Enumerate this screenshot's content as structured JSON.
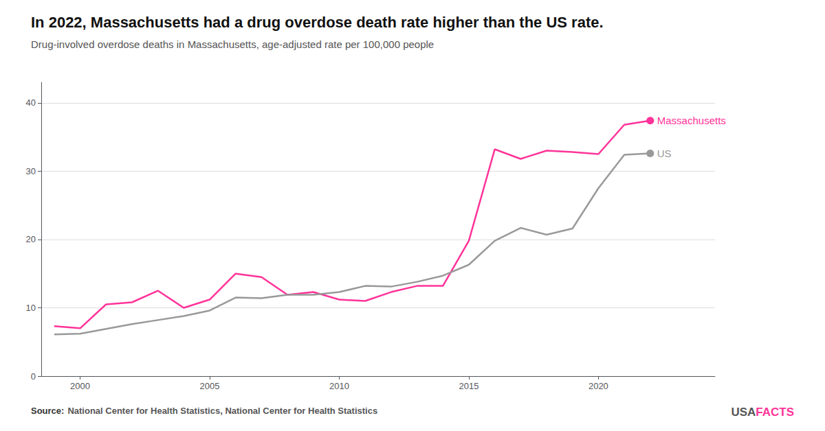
{
  "chart_data": {
    "type": "line",
    "title": "In 2022, Massachusetts had a drug overdose death rate higher than the US rate.",
    "subtitle": "Drug-involved overdose deaths in Massachusetts, age-adjusted rate per 100,000 people",
    "source_label": "Source:",
    "source": "National Center for Health Statistics, National Center for Health Statistics",
    "branding": [
      "USA",
      "FACTS"
    ],
    "x": [
      1999,
      2000,
      2001,
      2002,
      2003,
      2004,
      2005,
      2006,
      2007,
      2008,
      2009,
      2010,
      2011,
      2012,
      2013,
      2014,
      2015,
      2016,
      2017,
      2018,
      2019,
      2020,
      2021,
      2022
    ],
    "xlim": [
      1998.5,
      2024.5
    ],
    "xticks": [
      2000,
      2005,
      2010,
      2015,
      2020
    ],
    "ylim": [
      0,
      43
    ],
    "yticks": [
      0,
      10,
      20,
      30,
      40
    ],
    "grid": true,
    "series": [
      {
        "name": "Massachusetts",
        "color": "#FF3399",
        "values": [
          7.3,
          7.0,
          10.5,
          10.8,
          12.5,
          10.0,
          11.2,
          15.0,
          14.5,
          11.9,
          12.3,
          11.2,
          11.0,
          12.3,
          13.2,
          13.2,
          19.8,
          33.2,
          31.8,
          33.0,
          32.8,
          32.5,
          36.8,
          37.4
        ]
      },
      {
        "name": "US",
        "color": "#999999",
        "values": [
          6.1,
          6.2,
          6.9,
          7.6,
          8.2,
          8.8,
          9.6,
          11.5,
          11.4,
          11.9,
          11.9,
          12.3,
          13.2,
          13.1,
          13.8,
          14.7,
          16.3,
          19.8,
          21.7,
          20.7,
          21.6,
          27.5,
          32.4,
          32.6
        ]
      }
    ]
  }
}
